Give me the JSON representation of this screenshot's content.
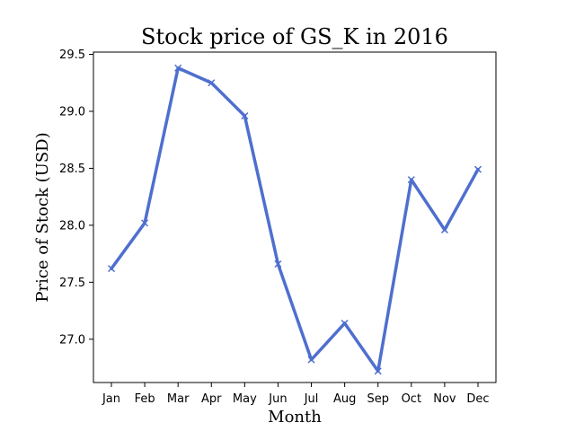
{
  "chart_data": {
    "type": "line",
    "title": "Stock price of GS_K in 2016",
    "xlabel": "Month",
    "ylabel": "Price of Stock (USD)",
    "categories": [
      "Jan",
      "Feb",
      "Mar",
      "Apr",
      "May",
      "Jun",
      "Jul",
      "Aug",
      "Sep",
      "Oct",
      "Nov",
      "Dec"
    ],
    "series": [
      {
        "values": [
          27.62,
          28.02,
          29.38,
          29.25,
          28.96,
          27.66,
          26.82,
          27.14,
          26.72,
          28.4,
          27.96,
          28.49
        ],
        "color": "#4f6fcf",
        "marker": "x"
      }
    ],
    "ylim": [
      26.62,
      29.52
    ],
    "yticks": [
      27.0,
      27.5,
      28.0,
      28.5,
      29.0,
      29.5
    ],
    "ytick_labels": [
      "27.0",
      "27.5",
      "28.0",
      "28.5",
      "29.0",
      "29.5"
    ],
    "grid": false
  }
}
